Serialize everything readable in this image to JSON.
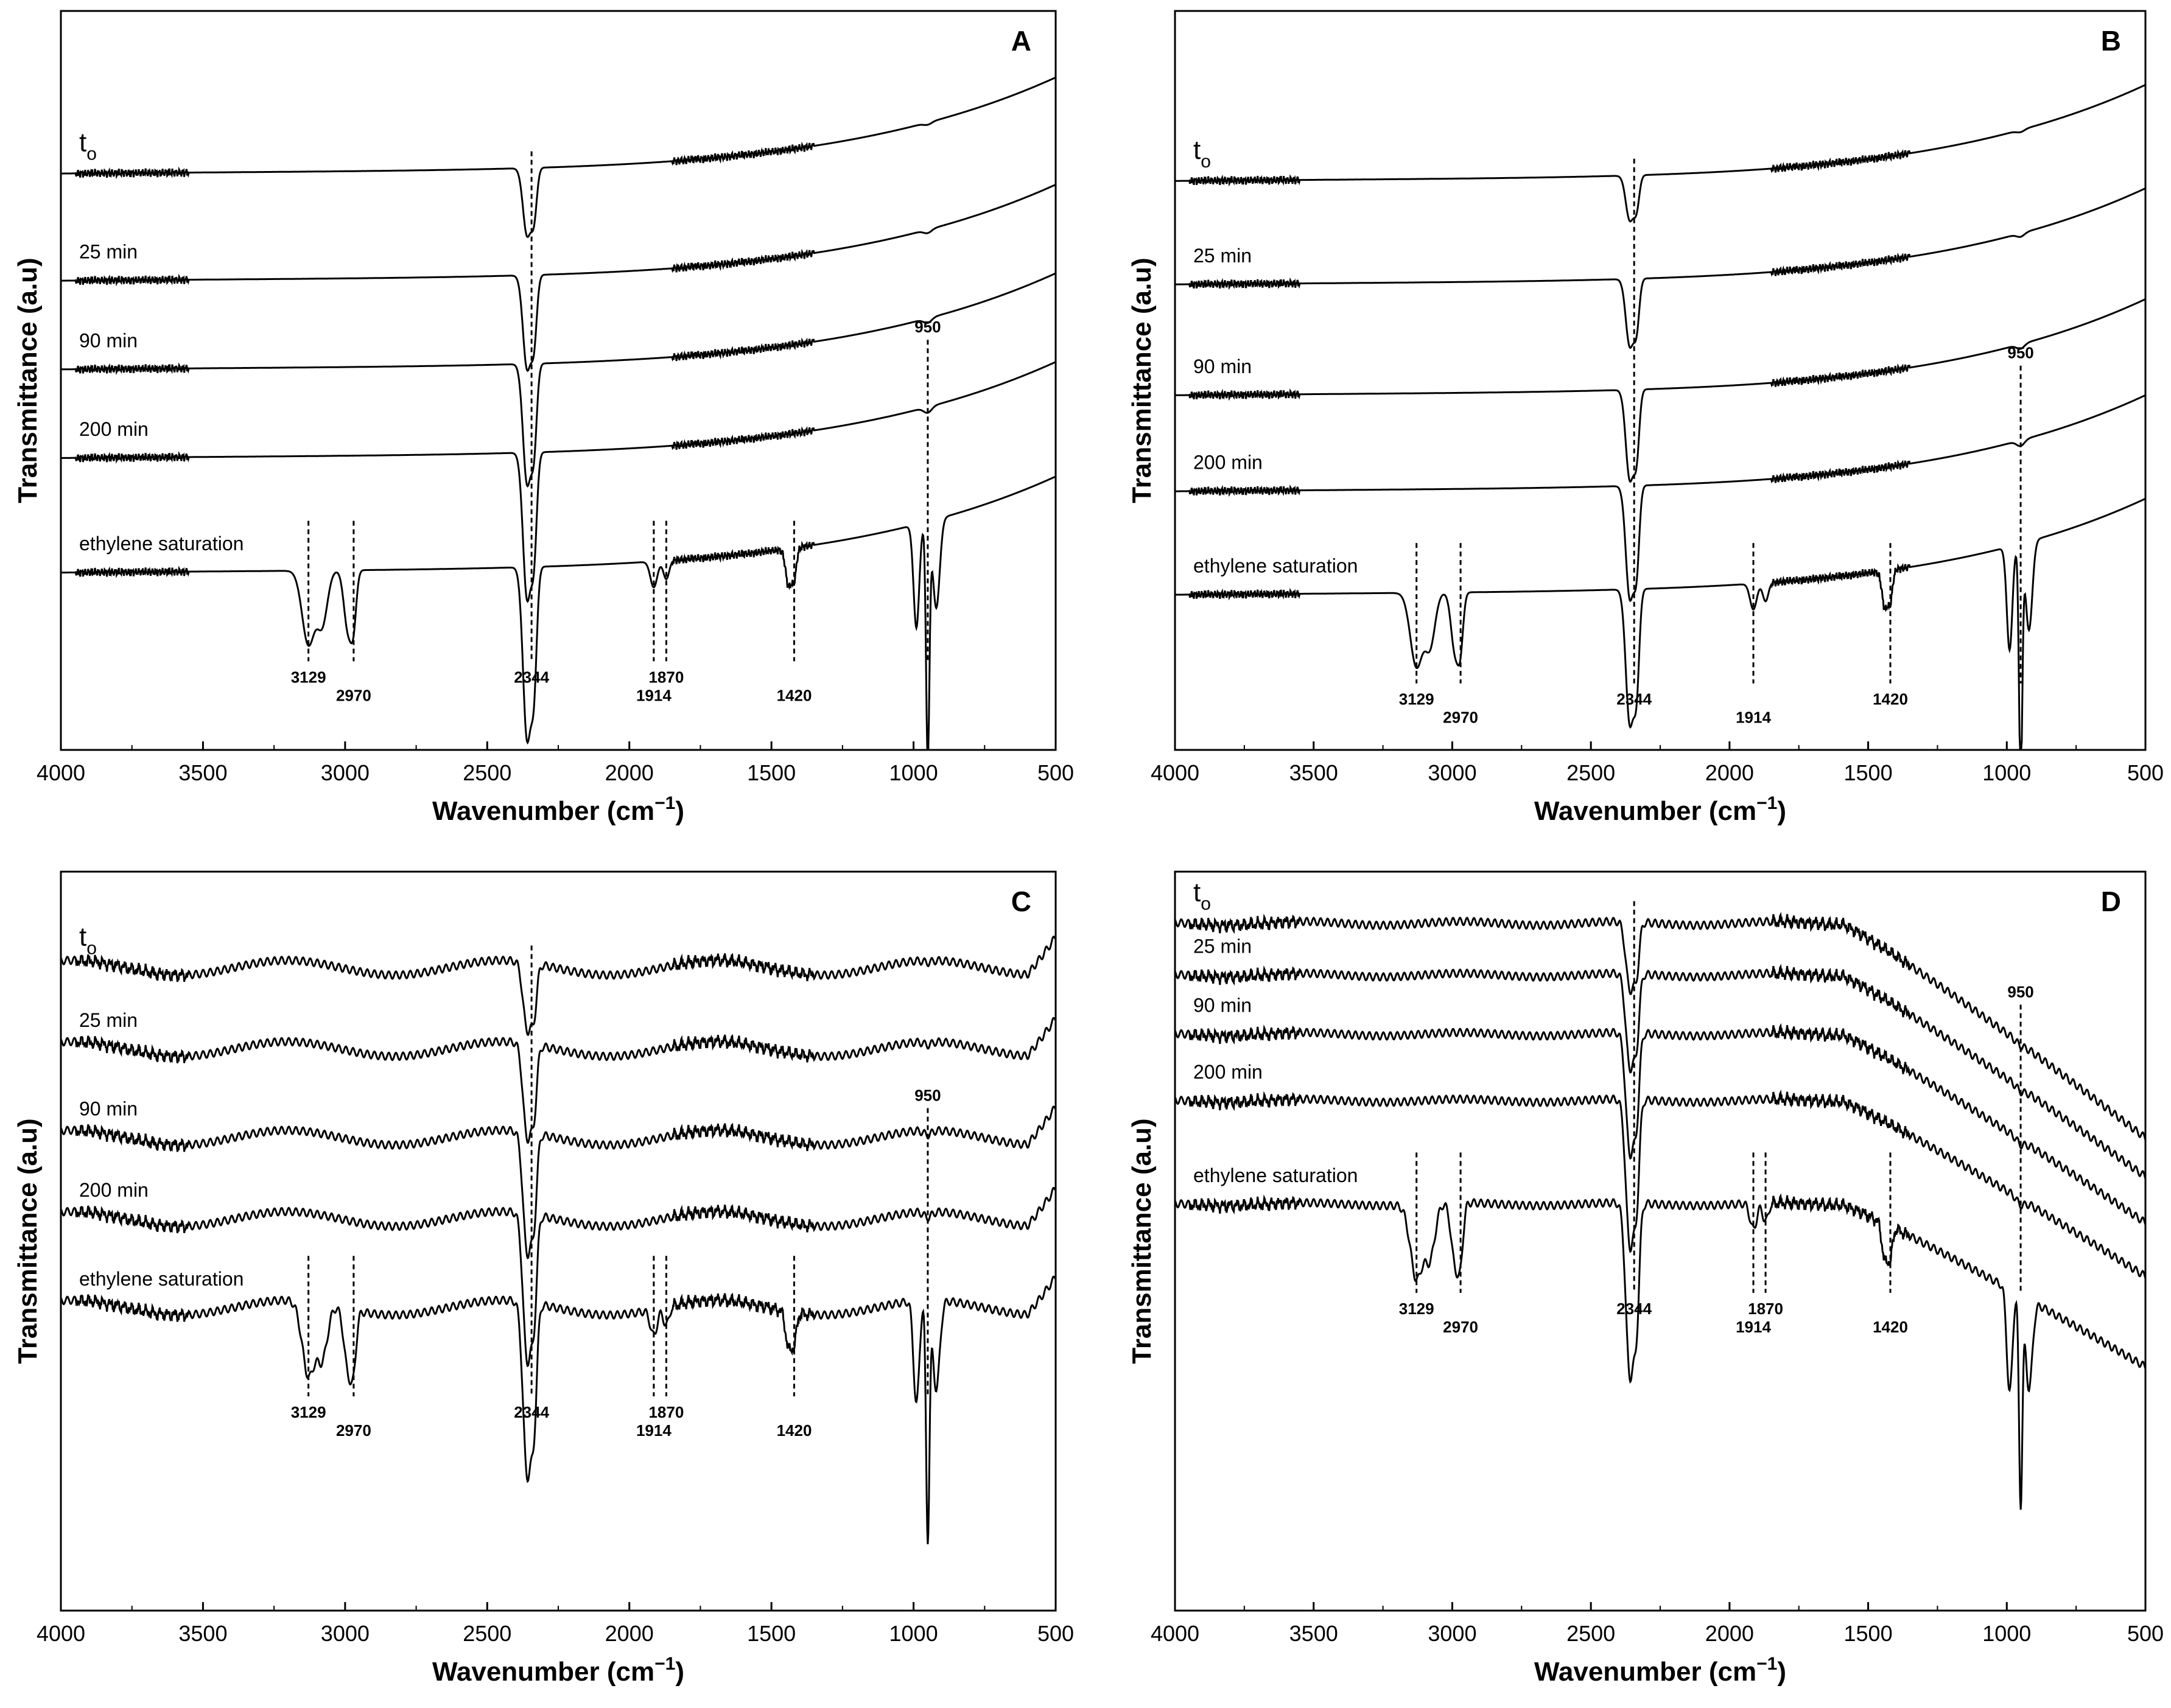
{
  "figure": {
    "description_title": "FTIR spectra panels A-D",
    "colors": {
      "line": "#000000",
      "background": "#ffffff"
    }
  },
  "chart_data": [
    {
      "type": "line",
      "panel": "A",
      "xlabel": "Wavenumber (cm",
      "xlabel_sup": "−1",
      "xlabel_close": ")",
      "ylabel": "Transmittance (a.u)",
      "xlim": [
        4000,
        500
      ],
      "xticks": [
        4000,
        3500,
        3000,
        2500,
        2000,
        1500,
        1000,
        500
      ],
      "series": [
        {
          "name": "t",
          "sub": "o",
          "offset": 0.78
        },
        {
          "name": "25 min",
          "offset": 0.635
        },
        {
          "name": "90 min",
          "offset": 0.515
        },
        {
          "name": "200 min",
          "offset": 0.395
        },
        {
          "name": "ethylene saturation",
          "offset": 0.24
        }
      ],
      "peaks": [
        {
          "wn": 3129,
          "label": "3129"
        },
        {
          "wn": 2970,
          "label": "2970"
        },
        {
          "wn": 2344,
          "label": "2344"
        },
        {
          "wn": 1914,
          "label": "1914"
        },
        {
          "wn": 1870,
          "label": "1870"
        },
        {
          "wn": 1420,
          "label": "1420"
        },
        {
          "wn": 950,
          "label": "950"
        }
      ]
    },
    {
      "type": "line",
      "panel": "B",
      "xlabel": "Wavenumber (cm",
      "xlabel_sup": "−1",
      "xlabel_close": ")",
      "ylabel": "Transmittance (a.u)",
      "xlim": [
        4000,
        500
      ],
      "xticks": [
        4000,
        3500,
        3000,
        2500,
        2000,
        1500,
        1000,
        500
      ],
      "series": [
        {
          "name": "t",
          "sub": "o",
          "offset": 0.77
        },
        {
          "name": "25 min",
          "offset": 0.63
        },
        {
          "name": "90 min",
          "offset": 0.48
        },
        {
          "name": "200 min",
          "offset": 0.35
        },
        {
          "name": "ethylene saturation",
          "offset": 0.21
        }
      ],
      "peaks": [
        {
          "wn": 3129,
          "label": "3129"
        },
        {
          "wn": 2970,
          "label": "2970"
        },
        {
          "wn": 2344,
          "label": "2344"
        },
        {
          "wn": 1914,
          "label": "1914"
        },
        {
          "wn": 1420,
          "label": "1420"
        },
        {
          "wn": 950,
          "label": "950"
        }
      ]
    },
    {
      "type": "line",
      "panel": "C",
      "xlabel": "Wavenumber (cm",
      "xlabel_sup": "−1",
      "xlabel_close": ")",
      "ylabel": "Transmittance (a.u)",
      "xlim": [
        4000,
        500
      ],
      "xticks": [
        4000,
        3500,
        3000,
        2500,
        2000,
        1500,
        1000,
        500
      ],
      "series": [
        {
          "name": "t",
          "sub": "o",
          "offset": 0.87
        },
        {
          "name": "25 min",
          "offset": 0.76
        },
        {
          "name": "90 min",
          "offset": 0.64
        },
        {
          "name": "200 min",
          "offset": 0.53
        },
        {
          "name": "ethylene saturation",
          "offset": 0.41
        }
      ],
      "peaks": [
        {
          "wn": 3129,
          "label": "3129"
        },
        {
          "wn": 2970,
          "label": "2970"
        },
        {
          "wn": 2344,
          "label": "2344"
        },
        {
          "wn": 1914,
          "label": "1914"
        },
        {
          "wn": 1870,
          "label": "1870"
        },
        {
          "wn": 1420,
          "label": "1420"
        },
        {
          "wn": 950,
          "label": "950"
        }
      ]
    },
    {
      "type": "line",
      "panel": "D",
      "xlabel": "Wavenumber (cm",
      "xlabel_sup": "−1",
      "xlabel_close": ")",
      "ylabel": "Transmittance (a.u)",
      "xlim": [
        4000,
        500
      ],
      "xticks": [
        4000,
        3500,
        3000,
        2500,
        2000,
        1500,
        1000,
        500
      ],
      "series": [
        {
          "name": "t",
          "sub": "o",
          "offset": 0.93
        },
        {
          "name": "25 min",
          "offset": 0.86
        },
        {
          "name": "90 min",
          "offset": 0.78
        },
        {
          "name": "200 min",
          "offset": 0.69
        },
        {
          "name": "ethylene saturation",
          "offset": 0.55
        }
      ],
      "peaks": [
        {
          "wn": 3129,
          "label": "3129"
        },
        {
          "wn": 2970,
          "label": "2970"
        },
        {
          "wn": 2344,
          "label": "2344"
        },
        {
          "wn": 1914,
          "label": "1914"
        },
        {
          "wn": 1870,
          "label": "1870"
        },
        {
          "wn": 1420,
          "label": "1420"
        },
        {
          "wn": 950,
          "label": "950"
        }
      ]
    }
  ]
}
